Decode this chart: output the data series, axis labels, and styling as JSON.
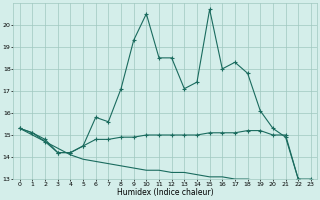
{
  "xlabel": "Humidex (Indice chaleur)",
  "x": [
    0,
    1,
    2,
    3,
    4,
    5,
    6,
    7,
    8,
    9,
    10,
    11,
    12,
    13,
    14,
    15,
    16,
    17,
    18,
    19,
    20,
    21,
    22,
    23
  ],
  "line1": [
    15.3,
    15.1,
    14.8,
    14.2,
    14.2,
    14.5,
    15.8,
    15.6,
    17.1,
    19.3,
    20.5,
    18.5,
    18.5,
    17.1,
    17.4,
    20.7,
    18.0,
    18.3,
    17.8,
    16.1,
    15.3,
    14.9,
    13.0,
    13.0
  ],
  "line2": [
    15.3,
    15.1,
    14.7,
    14.2,
    14.2,
    14.5,
    14.8,
    14.8,
    14.9,
    14.9,
    15.0,
    15.0,
    15.0,
    15.0,
    15.0,
    15.1,
    15.1,
    15.1,
    15.2,
    15.2,
    15.0,
    15.0,
    13.0,
    12.9
  ],
  "line3": [
    15.3,
    15.0,
    14.7,
    14.4,
    14.1,
    13.9,
    13.8,
    13.7,
    13.6,
    13.5,
    13.4,
    13.4,
    13.3,
    13.3,
    13.2,
    13.1,
    13.1,
    13.0,
    13.0,
    12.9,
    12.9,
    12.8,
    12.7,
    12.9
  ],
  "color": "#1a6b5e",
  "bg_color": "#d4eeea",
  "grid_color": "#a0c8c0",
  "ylim": [
    13,
    21
  ],
  "xlim": [
    -0.5,
    23.5
  ],
  "yticks": [
    13,
    14,
    15,
    16,
    17,
    18,
    19,
    20
  ],
  "xticks": [
    0,
    1,
    2,
    3,
    4,
    5,
    6,
    7,
    8,
    9,
    10,
    11,
    12,
    13,
    14,
    15,
    16,
    17,
    18,
    19,
    20,
    21,
    22,
    23
  ]
}
